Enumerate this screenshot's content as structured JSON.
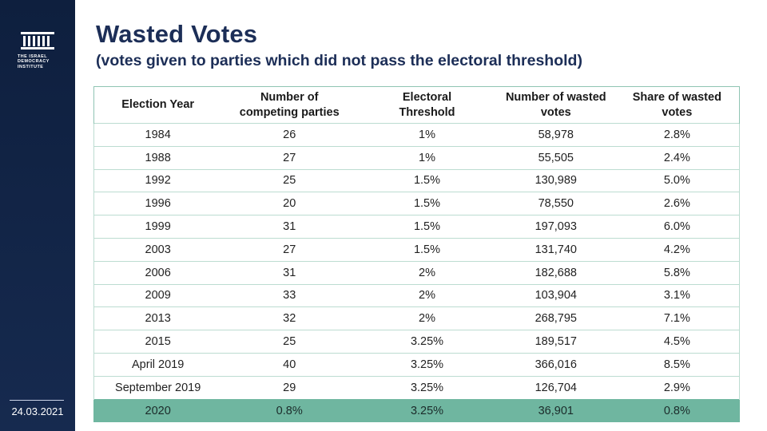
{
  "sidebar": {
    "logo_lines": [
      "THE ISRAEL",
      "DEMOCRACY",
      "INSTITUTE"
    ],
    "date": "24.03.2021"
  },
  "title": "Wasted Votes",
  "subtitle": "(votes given to parties which did not pass the electoral threshold)",
  "table": {
    "headers": [
      [
        "Election Year"
      ],
      [
        "Number of",
        "competing parties"
      ],
      [
        "Electoral",
        "Threshold"
      ],
      [
        "Number of wasted",
        "votes"
      ],
      [
        "Share of wasted",
        "votes"
      ]
    ],
    "rows": [
      [
        "1984",
        "26",
        "1%",
        "58,978",
        "2.8%"
      ],
      [
        "1988",
        "27",
        "1%",
        "55,505",
        "2.4%"
      ],
      [
        "1992",
        "25",
        "1.5%",
        "130,989",
        "5.0%"
      ],
      [
        "1996",
        "20",
        "1.5%",
        "78,550",
        "2.6%"
      ],
      [
        "1999",
        "31",
        "1.5%",
        "197,093",
        "6.0%"
      ],
      [
        "2003",
        "27",
        "1.5%",
        "131,740",
        "4.2%"
      ],
      [
        "2006",
        "31",
        "2%",
        "182,688",
        "5.8%"
      ],
      [
        "2009",
        "33",
        "2%",
        "103,904",
        "3.1%"
      ],
      [
        "2013",
        "32",
        "2%",
        "268,795",
        "7.1%"
      ],
      [
        "2015",
        "25",
        "3.25%",
        "189,517",
        "4.5%"
      ],
      [
        "April 2019",
        "40",
        "3.25%",
        "366,016",
        "8.5%"
      ],
      [
        "September 2019",
        "29",
        "3.25%",
        "126,704",
        "2.9%"
      ],
      [
        "2020",
        "0.8%",
        "3.25%",
        "36,901",
        "0.8%"
      ]
    ],
    "highlight_row_index": 12,
    "highlight_color": "#6fb6a0"
  },
  "colors": {
    "sidebar": "#0e1f3e",
    "title": "#1c2e57",
    "table_border": "#bcdcd1"
  }
}
